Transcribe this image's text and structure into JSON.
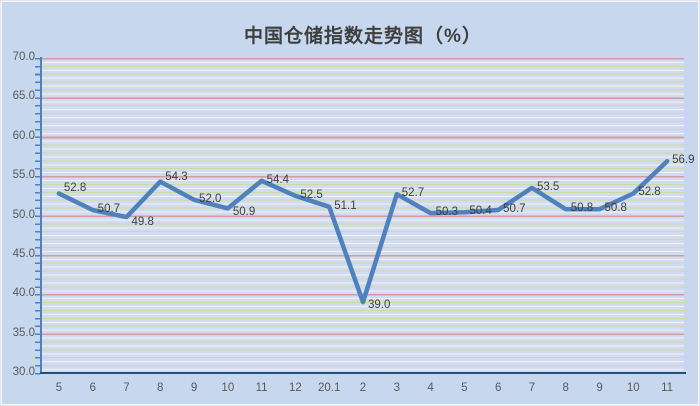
{
  "title": "中国仓储指数走势图（%）",
  "chart_data": {
    "type": "line",
    "title": "中国仓储指数走势图（%）",
    "categories": [
      "5",
      "6",
      "7",
      "8",
      "9",
      "10",
      "11",
      "12",
      "20.1",
      "2",
      "3",
      "4",
      "5",
      "6",
      "7",
      "8",
      "9",
      "10",
      "11"
    ],
    "series": [
      {
        "name": "中国仓储指数",
        "values": [
          52.8,
          50.7,
          49.8,
          54.3,
          52.0,
          50.9,
          54.4,
          52.5,
          51.1,
          39.0,
          52.7,
          50.3,
          50.4,
          50.7,
          53.5,
          50.8,
          50.8,
          52.8,
          56.9
        ]
      }
    ],
    "data_labels": [
      "52.8",
      "50.7",
      "49.8",
      "54.3",
      "52.0",
      "50.9",
      "54.4",
      "52.5",
      "51.1",
      "39.0",
      "52.7",
      "50.3",
      "50.4",
      "50.7",
      "53.5",
      "50.8",
      "50.8",
      "52.8",
      "56.9"
    ],
    "xlabel": "",
    "ylabel": "",
    "ylim": [
      30.0,
      70.0
    ],
    "ytick_step": 5.0,
    "yticks": [
      "70.0",
      "65.0",
      "60.0",
      "55.0",
      "50.0",
      "45.0",
      "40.0",
      "35.0",
      "30.0"
    ],
    "grid": "major-horizontal-with-minor-stripes",
    "legend": "none"
  },
  "colors": {
    "background": "#c7d8ee",
    "plot_background": "#d2dcee",
    "series_line": "#4f81bd",
    "major_gridline": "#d59ba1",
    "minor_gridline_green": "#cbdd9e",
    "minor_gridline_white": "#edf1f9",
    "y_axis": "#4f81bd",
    "x_axis": "#1f4e79",
    "title_text": "#3f3f3f",
    "data_label_text": "#3f3f3f",
    "tick_label_text": "#595959"
  }
}
